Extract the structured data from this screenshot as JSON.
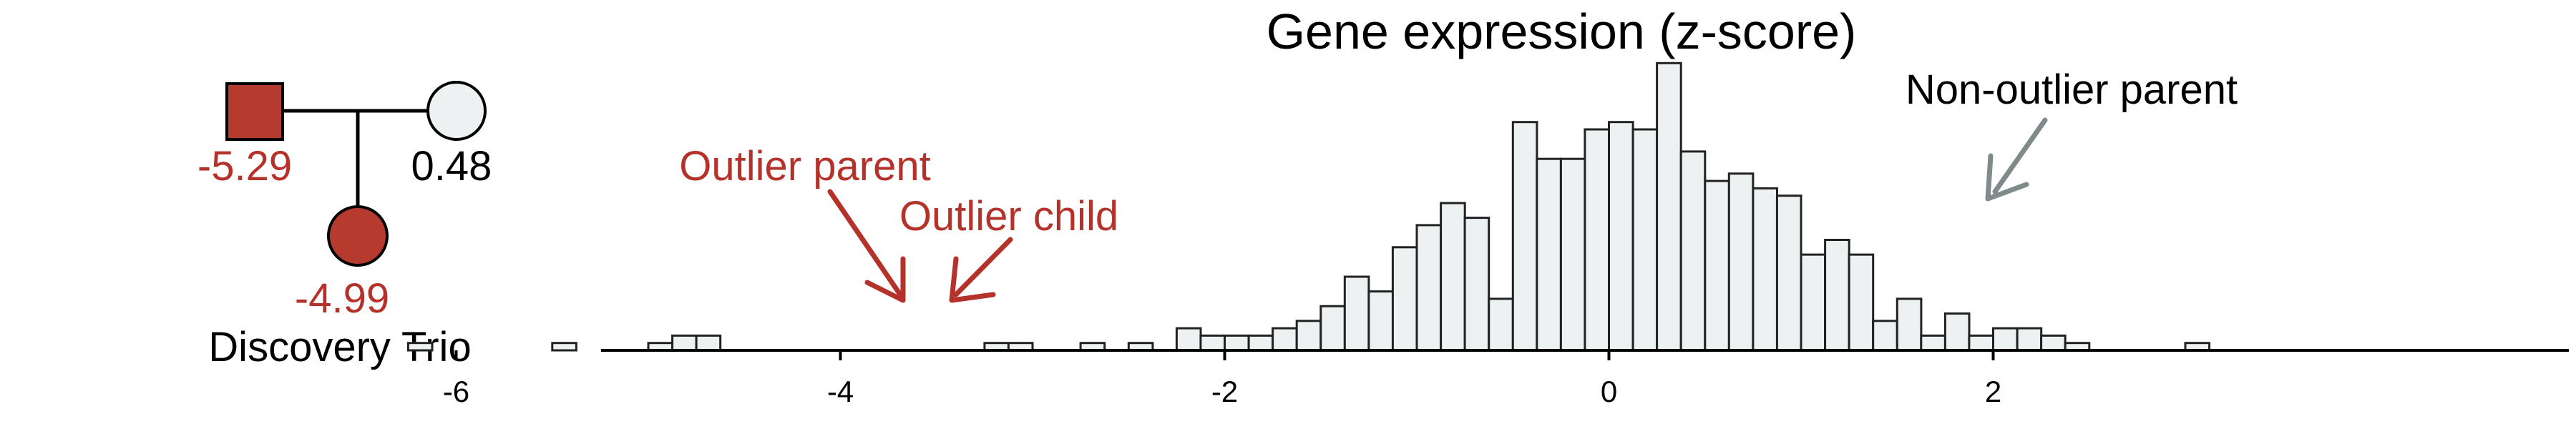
{
  "colors": {
    "accent_red": "#b5322a",
    "pedigree_fill_red": "#b63a2e",
    "bar_fill": "#eef1f2",
    "bar_stroke": "#222222",
    "arrow_gray": "#7f8a8a",
    "text_black": "#000000"
  },
  "pedigree": {
    "father_value": "-5.29",
    "mother_value": "0.48",
    "child_value": "-4.99",
    "caption": "Discovery Trio"
  },
  "annotations": {
    "outlier_parent": "Outlier parent",
    "outlier_child": "Outlier child",
    "non_outlier_parent": "Non-outlier parent"
  },
  "chart_data": {
    "type": "bar",
    "title": "Gene expression (z-score)",
    "xlabel": "",
    "ylabel": "",
    "bin_width": 0.25,
    "xlim": [
      -6.55,
      3.45
    ],
    "xticks": [
      -6,
      -4,
      -2,
      0,
      2
    ],
    "xtick_labels": [
      "-6",
      "-4",
      "-2",
      "0",
      "2"
    ],
    "grid": false,
    "bins": [
      {
        "x0": -6.25,
        "count": 1
      },
      {
        "x0": -5.5,
        "count": 1
      },
      {
        "x0": -5.0,
        "count": 1
      },
      {
        "x0": -4.875,
        "count": 2
      },
      {
        "x0": -4.75,
        "count": 2
      },
      {
        "x0": -3.25,
        "count": 1
      },
      {
        "x0": -3.125,
        "count": 1
      },
      {
        "x0": -2.75,
        "count": 1
      },
      {
        "x0": -2.5,
        "count": 1
      },
      {
        "x0": -2.25,
        "count": 3
      },
      {
        "x0": -2.125,
        "count": 2
      },
      {
        "x0": -2.0,
        "count": 2
      },
      {
        "x0": -1.875,
        "count": 2
      },
      {
        "x0": -1.75,
        "count": 3
      },
      {
        "x0": -1.625,
        "count": 4
      },
      {
        "x0": -1.5,
        "count": 6
      },
      {
        "x0": -1.375,
        "count": 10
      },
      {
        "x0": -1.25,
        "count": 8
      },
      {
        "x0": -1.125,
        "count": 14
      },
      {
        "x0": -1.0,
        "count": 17
      },
      {
        "x0": -0.875,
        "count": 20
      },
      {
        "x0": -0.75,
        "count": 18
      },
      {
        "x0": -0.625,
        "count": 7
      },
      {
        "x0": -0.5,
        "count": 31
      },
      {
        "x0": -0.375,
        "count": 26
      },
      {
        "x0": -0.25,
        "count": 26
      },
      {
        "x0": -0.125,
        "count": 30
      },
      {
        "x0": 0.0,
        "count": 31
      },
      {
        "x0": 0.125,
        "count": 30
      },
      {
        "x0": 0.25,
        "count": 39
      },
      {
        "x0": 0.375,
        "count": 27
      },
      {
        "x0": 0.5,
        "count": 23
      },
      {
        "x0": 0.625,
        "count": 24
      },
      {
        "x0": 0.75,
        "count": 22
      },
      {
        "x0": 0.875,
        "count": 21
      },
      {
        "x0": 1.0,
        "count": 13
      },
      {
        "x0": 1.125,
        "count": 15
      },
      {
        "x0": 1.25,
        "count": 13
      },
      {
        "x0": 1.375,
        "count": 4
      },
      {
        "x0": 1.5,
        "count": 7
      },
      {
        "x0": 1.625,
        "count": 2
      },
      {
        "x0": 1.75,
        "count": 5
      },
      {
        "x0": 1.875,
        "count": 2
      },
      {
        "x0": 2.0,
        "count": 3
      },
      {
        "x0": 2.125,
        "count": 3
      },
      {
        "x0": 2.25,
        "count": 2
      },
      {
        "x0": 2.375,
        "count": 1
      },
      {
        "x0": 3.0,
        "count": 1
      }
    ]
  }
}
